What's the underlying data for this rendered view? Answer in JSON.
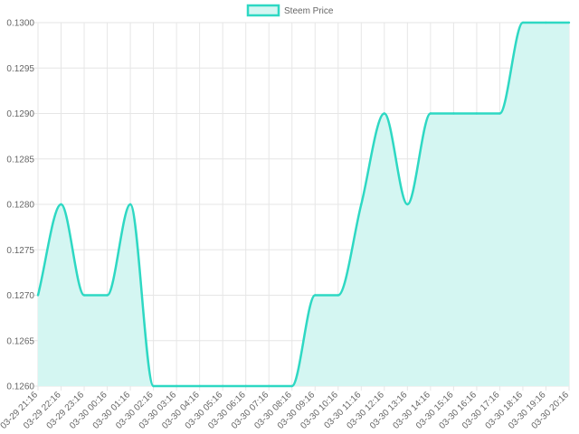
{
  "chart_data": {
    "type": "area",
    "title": "",
    "xlabel": "",
    "ylabel": "",
    "categories": [
      "03-29 21:16",
      "03-29 22:16",
      "03-29 23:16",
      "03-30 00:16",
      "03-30 01:16",
      "03-30 02:16",
      "03-30 03:16",
      "03-30 04:16",
      "03-30 05:16",
      "03-30 06:16",
      "03-30 07:16",
      "03-30 08:16",
      "03-30 09:16",
      "03-30 10:16",
      "03-30 11:16",
      "03-30 12:16",
      "03-30 13:16",
      "03-30 14:16",
      "03-30 15:16",
      "03-30 16:16",
      "03-30 17:16",
      "03-30 18:16",
      "03-30 19:16",
      "03-30 20:16"
    ],
    "series": [
      {
        "name": "Steem Price",
        "values": [
          0.127,
          0.128,
          0.127,
          0.127,
          0.128,
          0.126,
          0.126,
          0.126,
          0.126,
          0.126,
          0.126,
          0.126,
          0.127,
          0.127,
          0.128,
          0.129,
          0.128,
          0.129,
          0.129,
          0.129,
          0.129,
          0.13,
          0.13,
          0.13
        ],
        "line_color": "#2ed8c3",
        "fill_color": "#d4f6f2"
      }
    ],
    "ylim": [
      0.126,
      0.13
    ],
    "yticks": [
      "0.1300",
      "0.1295",
      "0.1290",
      "0.1285",
      "0.1280",
      "0.1275",
      "0.1270",
      "0.1265",
      "0.1260"
    ],
    "grid": true,
    "legend_position": "top-center",
    "grid_color": "#e6e6e6",
    "label_color": "#666666"
  }
}
